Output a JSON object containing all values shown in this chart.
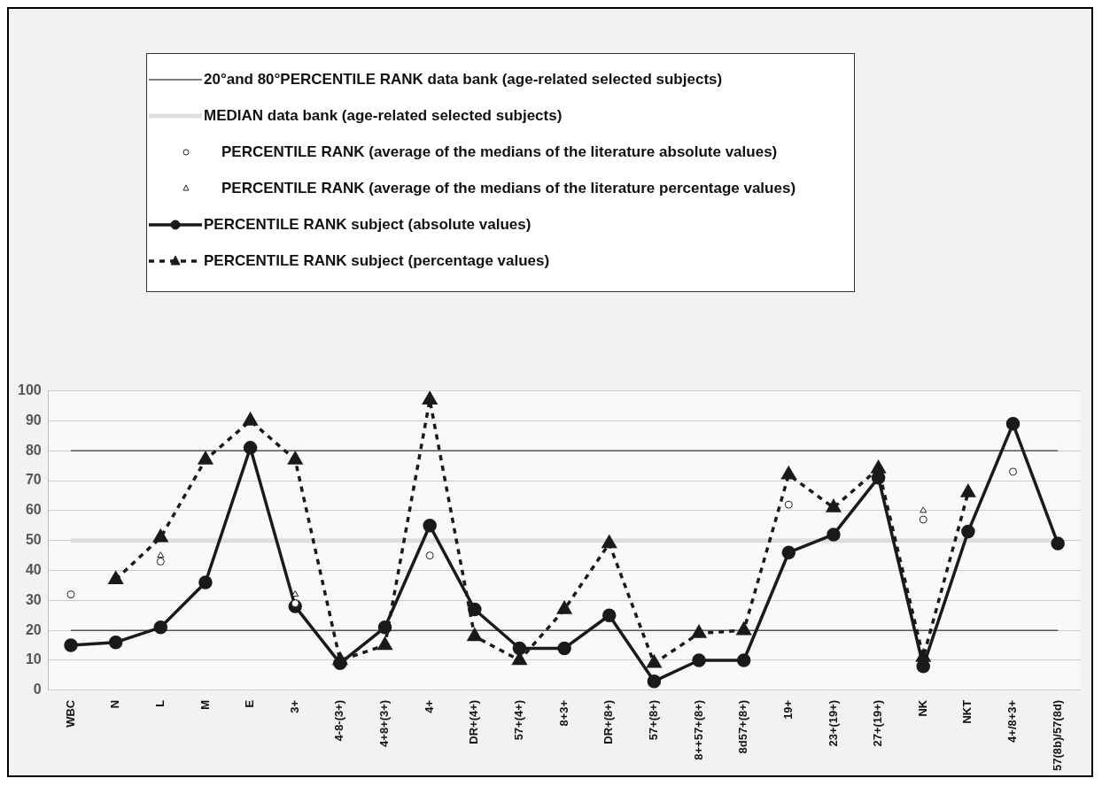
{
  "chart_data": {
    "type": "line",
    "categories": [
      "WBC",
      "N",
      "L",
      "M",
      "E",
      "3+",
      "4-8-(3+)",
      "4+8+(3+)",
      "4+",
      "DR+(4+)",
      "57+(4+)",
      "8+3+",
      "DR+(8+)",
      "57+(8+)",
      "8++57+(8+)",
      "8d57+(8+)",
      "19+",
      "23+(19+)",
      "27+(19+)",
      "NK",
      "NKT",
      "4+/8+3+",
      "57(8b)/57(8d)"
    ],
    "series": [
      {
        "name": "20°and 80°PERCENTILE RANK data bank (age-related   selected subjects)",
        "type": "line",
        "color": "#555555",
        "marker": "none",
        "line_style": "solid",
        "values": [
          20,
          20,
          20,
          20,
          20,
          20,
          20,
          20,
          20,
          20,
          20,
          20,
          20,
          20,
          20,
          20,
          20,
          20,
          20,
          20,
          20,
          20,
          20
        ]
      },
      {
        "type": "line",
        "color": "#555555",
        "marker": "none",
        "line_style": "solid",
        "values": [
          80,
          80,
          80,
          80,
          80,
          80,
          80,
          80,
          80,
          80,
          80,
          80,
          80,
          80,
          80,
          80,
          80,
          80,
          80,
          80,
          80,
          80,
          80
        ]
      },
      {
        "name": "MEDIAN data bank (age-related selected subjects)",
        "type": "line",
        "color": "#dddddd",
        "marker": "none",
        "line_style": "solid",
        "values": [
          50,
          50,
          50,
          50,
          50,
          50,
          50,
          50,
          50,
          50,
          50,
          50,
          50,
          50,
          50,
          50,
          50,
          50,
          50,
          50,
          50,
          50,
          50
        ]
      },
      {
        "name": "PERCENTILE RANK (average of the medians of the literature absolute values)",
        "type": "scatter",
        "color": "#222222",
        "marker": "circle",
        "values": [
          32,
          null,
          43,
          null,
          null,
          29,
          null,
          null,
          45,
          null,
          null,
          null,
          null,
          null,
          null,
          null,
          62,
          null,
          null,
          57,
          null,
          73,
          null
        ]
      },
      {
        "name": "PERCENTILE RANK (average of the medians of the literature percentage values)",
        "type": "scatter",
        "color": "#222222",
        "marker": "triangle",
        "values": [
          null,
          null,
          45,
          null,
          null,
          32,
          null,
          null,
          null,
          null,
          null,
          null,
          null,
          null,
          null,
          null,
          null,
          null,
          null,
          60,
          null,
          null,
          null
        ]
      },
      {
        "name": "PERCENTILE RANK subject (absolute values)",
        "type": "line",
        "color": "#1a1a1a",
        "marker": "circle",
        "line_style": "solid",
        "values": [
          15,
          16,
          21,
          36,
          81,
          28,
          9,
          21,
          55,
          27,
          14,
          14,
          25,
          3,
          10,
          10,
          46,
          52,
          71,
          8,
          53,
          89,
          49
        ]
      },
      {
        "name": "PERCENTILE RANK subject (percentage values)",
        "type": "line",
        "color": "#1a1a1a",
        "marker": "triangle",
        "line_style": "dashed",
        "values": [
          null,
          37,
          51,
          77,
          90,
          77,
          10,
          15,
          97,
          18,
          10,
          27,
          49,
          9,
          19,
          20,
          72,
          61,
          74,
          11,
          66,
          null,
          null
        ]
      }
    ],
    "ylim": [
      0,
      100
    ],
    "yticks": [
      0,
      10,
      20,
      30,
      40,
      50,
      60,
      70,
      80,
      90,
      100
    ],
    "grid": "y",
    "legend": "top"
  }
}
